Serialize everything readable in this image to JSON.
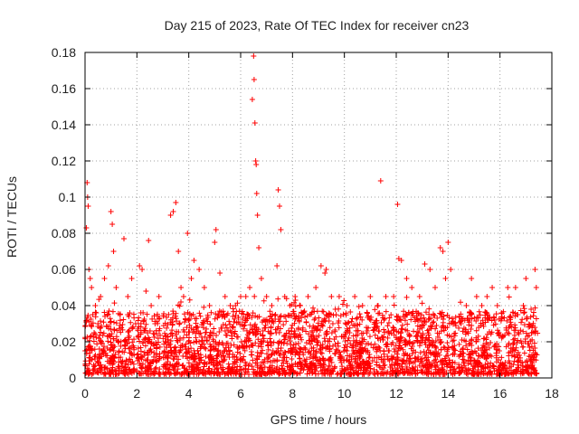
{
  "chart_data": {
    "type": "scatter",
    "title": "Day 215 of 2023, Rate Of TEC Index for receiver cn23",
    "xlabel": "GPS time / hours",
    "ylabel": "ROTI / TECUs",
    "xlim": [
      0,
      18
    ],
    "ylim": [
      0,
      0.18
    ],
    "x_ticks": [
      0,
      2,
      4,
      6,
      8,
      10,
      12,
      14,
      16,
      18
    ],
    "y_ticks": [
      0,
      0.02,
      0.04,
      0.06,
      0.08,
      0.1,
      0.12,
      0.14,
      0.16,
      0.18
    ],
    "x_tick_labels": [
      "0",
      "2",
      "4",
      "6",
      "8",
      "10",
      "12",
      "14",
      "16",
      "18"
    ],
    "y_tick_labels": [
      "0",
      "0.02",
      "0.04",
      "0.06",
      "0.08",
      "0.1",
      "0.12",
      "0.14",
      "0.16",
      "0.18"
    ],
    "grid": true,
    "marker": "+",
    "color": "#ff0000",
    "series": [
      {
        "name": "cn23",
        "x": [
          0.05,
          0.08,
          0.1,
          0.12,
          0.15,
          0.2,
          0.25,
          0.3,
          0.35,
          0.4,
          0.5,
          0.6,
          0.75,
          0.9,
          1.0,
          1.05,
          1.1,
          1.2,
          1.35,
          1.5,
          1.65,
          1.8,
          1.95,
          2.1,
          2.2,
          2.35,
          2.45,
          2.55,
          2.7,
          2.85,
          3.3,
          3.4,
          3.5,
          3.6,
          3.7,
          3.8,
          3.95,
          4.1,
          4.2,
          4.4,
          4.6,
          4.8,
          5.0,
          5.05,
          5.2,
          5.4,
          5.6,
          5.8,
          6.0,
          6.2,
          6.35,
          6.45,
          6.5,
          6.52,
          6.55,
          6.58,
          6.6,
          6.62,
          6.65,
          6.7,
          6.8,
          7.0,
          7.2,
          7.4,
          7.45,
          7.5,
          7.55,
          7.7,
          7.9,
          8.1,
          8.3,
          8.6,
          8.9,
          9.1,
          9.25,
          9.3,
          9.5,
          9.8,
          10.1,
          10.4,
          10.7,
          11.0,
          11.3,
          11.4,
          11.6,
          11.9,
          12.05,
          12.1,
          12.2,
          12.4,
          12.6,
          12.9,
          13.1,
          13.3,
          13.5,
          13.7,
          13.8,
          13.9,
          14.0,
          14.1,
          14.5,
          14.7,
          14.9,
          15.1,
          15.3,
          15.5,
          15.7,
          15.9,
          16.3,
          16.6,
          16.9,
          17.0,
          17.2,
          17.35,
          17.4
        ],
        "y": [
          0.083,
          0.108,
          0.1,
          0.095,
          0.06,
          0.055,
          0.05,
          0.035,
          0.025,
          0.04,
          0.03,
          0.045,
          0.055,
          0.062,
          0.092,
          0.085,
          0.07,
          0.05,
          0.035,
          0.077,
          0.045,
          0.055,
          0.03,
          0.062,
          0.06,
          0.048,
          0.076,
          0.04,
          0.03,
          0.045,
          0.09,
          0.092,
          0.097,
          0.07,
          0.05,
          0.045,
          0.08,
          0.055,
          0.065,
          0.06,
          0.05,
          0.04,
          0.075,
          0.082,
          0.058,
          0.045,
          0.04,
          0.04,
          0.045,
          0.045,
          0.05,
          0.154,
          0.178,
          0.165,
          0.141,
          0.12,
          0.118,
          0.102,
          0.09,
          0.072,
          0.055,
          0.045,
          0.04,
          0.062,
          0.104,
          0.095,
          0.082,
          0.045,
          0.04,
          0.045,
          0.04,
          0.045,
          0.05,
          0.062,
          0.058,
          0.06,
          0.045,
          0.045,
          0.04,
          0.045,
          0.04,
          0.045,
          0.04,
          0.109,
          0.045,
          0.045,
          0.096,
          0.066,
          0.065,
          0.055,
          0.05,
          0.045,
          0.063,
          0.06,
          0.05,
          0.072,
          0.07,
          0.055,
          0.075,
          0.06,
          0.03,
          0.04,
          0.055,
          0.045,
          0.04,
          0.045,
          0.05,
          0.04,
          0.05,
          0.05,
          0.04,
          0.055,
          0.038,
          0.06,
          0.05
        ]
      }
    ],
    "dense_background": {
      "description_free": true,
      "segments": [
        [
          0.0,
          1.9
        ],
        [
          2.0,
          2.9
        ],
        [
          3.0,
          14.3
        ],
        [
          14.4,
          17.45
        ]
      ],
      "y_floor": 0.002,
      "y_typical_max": 0.035
    }
  }
}
